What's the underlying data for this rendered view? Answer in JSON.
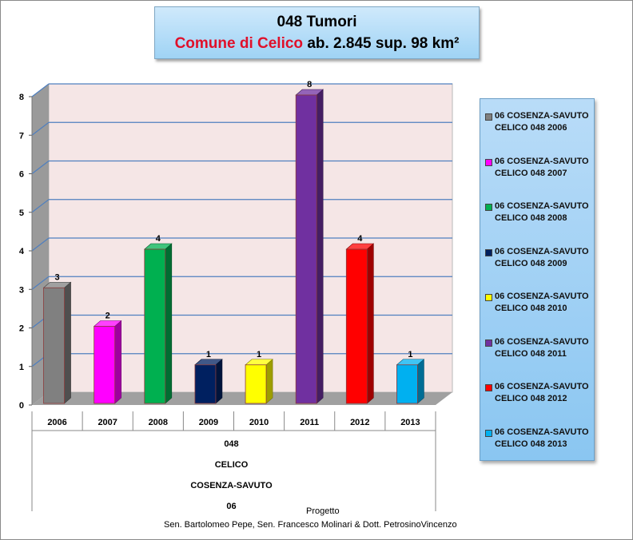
{
  "title": {
    "line1": "048 Tumori",
    "line2_red": "Comune di Celico",
    "line2_rest": " ab. 2.845  sup. 98 km²"
  },
  "chart_data": {
    "type": "bar",
    "categories": [
      "2006",
      "2007",
      "2008",
      "2009",
      "2010",
      "2011",
      "2012",
      "2013"
    ],
    "values": [
      3,
      2,
      4,
      1,
      1,
      8,
      4,
      1
    ],
    "colors": [
      "#808080",
      "#ff00ff",
      "#00b050",
      "#002060",
      "#ffff00",
      "#7030a0",
      "#ff0000",
      "#00b0f0"
    ],
    "yticks": [
      "0",
      "1",
      "2",
      "3",
      "4",
      "5",
      "6",
      "7",
      "8"
    ],
    "ylim": [
      0,
      8
    ],
    "grid": true,
    "legend_position": "right",
    "category_groups": [
      "048",
      "CELICO",
      "COSENZA-SAVUTO",
      "06"
    ],
    "legend": [
      [
        "06 COSENZA-SAVUTO",
        "CELICO 048 2006"
      ],
      [
        "06 COSENZA-SAVUTO",
        "CELICO 048 2007"
      ],
      [
        "06 COSENZA-SAVUTO",
        "CELICO 048 2008"
      ],
      [
        "06 COSENZA-SAVUTO",
        "CELICO 048 2009"
      ],
      [
        "06 COSENZA-SAVUTO",
        "CELICO 048 2010"
      ],
      [
        "06 COSENZA-SAVUTO",
        "CELICO 048 2011"
      ],
      [
        "06 COSENZA-SAVUTO",
        "CELICO 048 2012"
      ],
      [
        "06 COSENZA-SAVUTO",
        "CELICO 048 2013"
      ]
    ]
  },
  "footer": {
    "line1": "Progetto",
    "line2": "Sen. Bartolomeo Pepe, Sen. Francesco Molinari & Dott. PetrosinoVincenzo"
  }
}
